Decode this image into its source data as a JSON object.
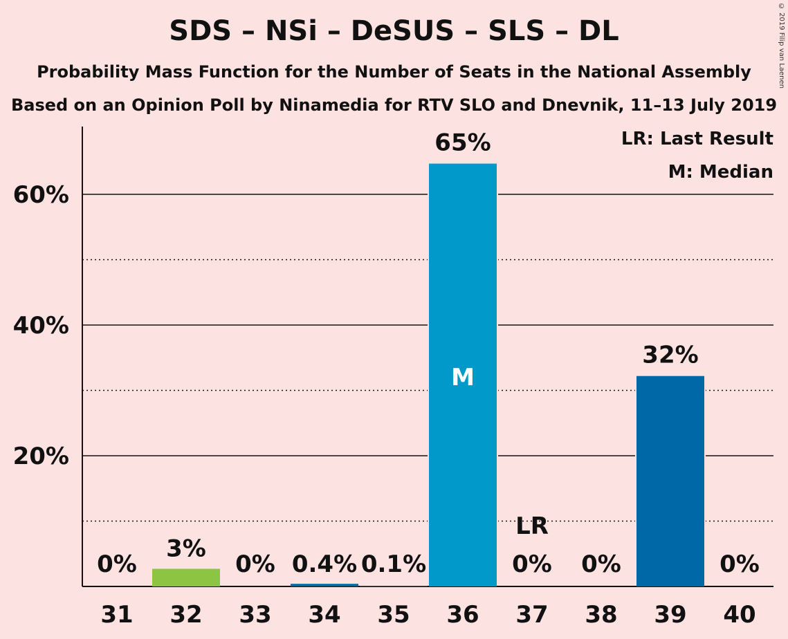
{
  "title": "SDS – NSi – DeSUS – SLS – DL",
  "subtitle": "Probability Mass Function for the Number of Seats in the National Assembly",
  "source": "Based on an Opinion Poll by Ninamedia for RTV SLO and Dnevnik, 11–13 July 2019",
  "copyright": "© 2019 Filip van Laenen",
  "legend": {
    "last_result": "LR: Last Result",
    "median": "M: Median",
    "placement": "top-right"
  },
  "colors": {
    "background": "#fde2e2",
    "bar_default": "#0068a6",
    "bar_median": "#0099c9",
    "bar_32": "#8dc543"
  },
  "chart_data": {
    "type": "bar",
    "categories": [
      "31",
      "32",
      "33",
      "34",
      "35",
      "36",
      "37",
      "38",
      "39",
      "40"
    ],
    "values": [
      0,
      2.7,
      0,
      0.4,
      0.1,
      64.7,
      0,
      0,
      32.2,
      0
    ],
    "labels": [
      "0%",
      "3%",
      "0%",
      "0.4%",
      "0.1%",
      "65%",
      "0%",
      "0%",
      "32%",
      "0%"
    ],
    "ylim": [
      0,
      70
    ],
    "yticks": [
      20,
      40,
      60
    ],
    "ytick_labels": [
      "20%",
      "40%",
      "60%"
    ],
    "minor_gridlines": [
      10,
      30,
      50
    ],
    "median_category": "36",
    "median_marker": "M",
    "last_result_category": "37",
    "last_result_marker": "LR"
  }
}
